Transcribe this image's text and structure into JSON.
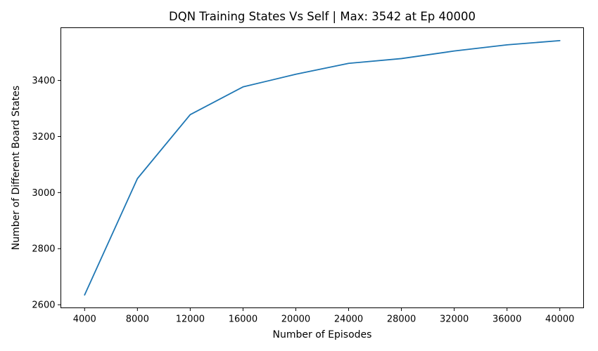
{
  "chart_data": {
    "type": "line",
    "title": "DQN Training States Vs Self | Max: 3542 at Ep 40000",
    "xlabel": "Number of Episodes",
    "ylabel": "Number of Different Board States",
    "x": [
      4000,
      8000,
      12000,
      16000,
      20000,
      24000,
      28000,
      32000,
      36000,
      40000
    ],
    "series": [
      {
        "values": [
          2635,
          3050,
          3278,
          3377,
          3422,
          3461,
          3478,
          3505,
          3527,
          3542
        ],
        "color": "#1f77b4"
      }
    ],
    "xticks": [
      4000,
      8000,
      12000,
      16000,
      20000,
      24000,
      28000,
      32000,
      36000,
      40000
    ],
    "xtick_labels": [
      "4000",
      "8000",
      "12000",
      "16000",
      "20000",
      "24000",
      "28000",
      "32000",
      "36000",
      "40000"
    ],
    "yticks": [
      2600,
      2800,
      3000,
      3200,
      3400
    ],
    "ytick_labels": [
      "2600",
      "2800",
      "3000",
      "3200",
      "3400"
    ],
    "xlim": [
      2200,
      41800
    ],
    "ylim": [
      2589,
      3588
    ],
    "grid": false,
    "legend": false
  }
}
